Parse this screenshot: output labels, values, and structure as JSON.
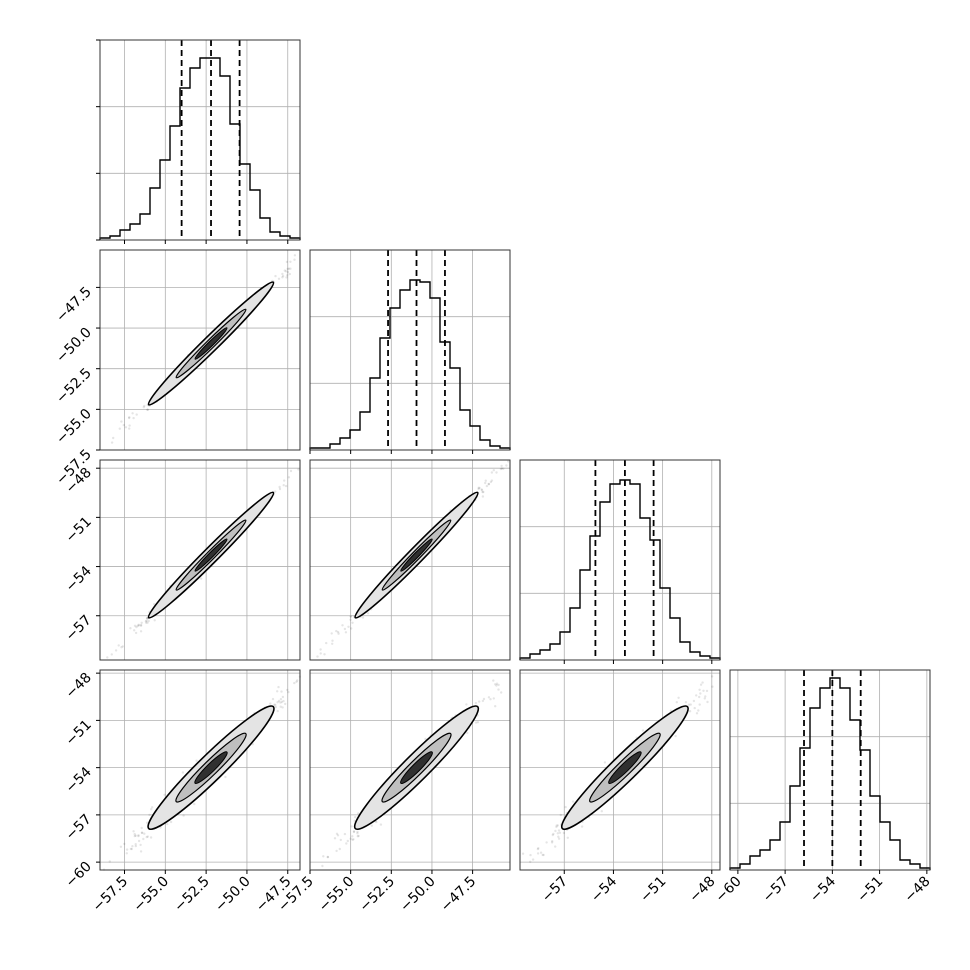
{
  "chart_data": {
    "type": "corner",
    "grid": true,
    "parameters": [
      {
        "range": [
          -59,
          -46.75
        ],
        "quantiles": [
          -54.0,
          -52.2,
          -50.45
        ],
        "ticks": [
          -57.5,
          -55.0,
          -52.5,
          -50.0,
          -47.5
        ],
        "tick_labels": [
          "−57.5",
          "−55.0",
          "−52.5",
          "−50.0",
          "−47.5"
        ]
      },
      {
        "range": [
          -57.5,
          -45.2
        ],
        "quantiles": [
          -52.7,
          -50.95,
          -49.2
        ],
        "ticks": [
          -57.5,
          -55.0,
          -52.5,
          -50.0,
          -47.5
        ],
        "tick_labels": [
          "−57.5",
          "−55.0",
          "−52.5",
          "−50.0",
          "−47.5"
        ]
      },
      {
        "range": [
          -59.7,
          -47.5
        ],
        "quantiles": [
          -55.1,
          -53.3,
          -51.55
        ],
        "ticks": [
          -57,
          -54,
          -51,
          -48
        ],
        "tick_labels": [
          "−57",
          "−54",
          "−51",
          "−48"
        ]
      },
      {
        "range": [
          -60.5,
          -47.8
        ],
        "quantiles": [
          -55.8,
          -54.0,
          -52.2
        ],
        "ticks": [
          -60,
          -57,
          -54,
          -51,
          -48
        ],
        "tick_labels": [
          "−60",
          "−57",
          "−54",
          "−51",
          "−48"
        ]
      }
    ],
    "histograms": [
      [
        0.01,
        0.02,
        0.05,
        0.08,
        0.13,
        0.26,
        0.4,
        0.57,
        0.76,
        0.86,
        0.91,
        0.91,
        0.82,
        0.58,
        0.38,
        0.25,
        0.11,
        0.04,
        0.02,
        0.01
      ],
      [
        0.01,
        0.01,
        0.03,
        0.06,
        0.1,
        0.19,
        0.36,
        0.56,
        0.71,
        0.8,
        0.85,
        0.84,
        0.76,
        0.54,
        0.41,
        0.2,
        0.12,
        0.05,
        0.02,
        0.01
      ],
      [
        0.01,
        0.03,
        0.05,
        0.08,
        0.14,
        0.26,
        0.45,
        0.62,
        0.79,
        0.88,
        0.9,
        0.88,
        0.71,
        0.6,
        0.36,
        0.21,
        0.09,
        0.04,
        0.02,
        0.01
      ],
      [
        0.01,
        0.03,
        0.07,
        0.1,
        0.15,
        0.24,
        0.42,
        0.61,
        0.81,
        0.91,
        0.96,
        0.91,
        0.75,
        0.6,
        0.37,
        0.24,
        0.15,
        0.05,
        0.03,
        0.01
      ]
    ]
  }
}
